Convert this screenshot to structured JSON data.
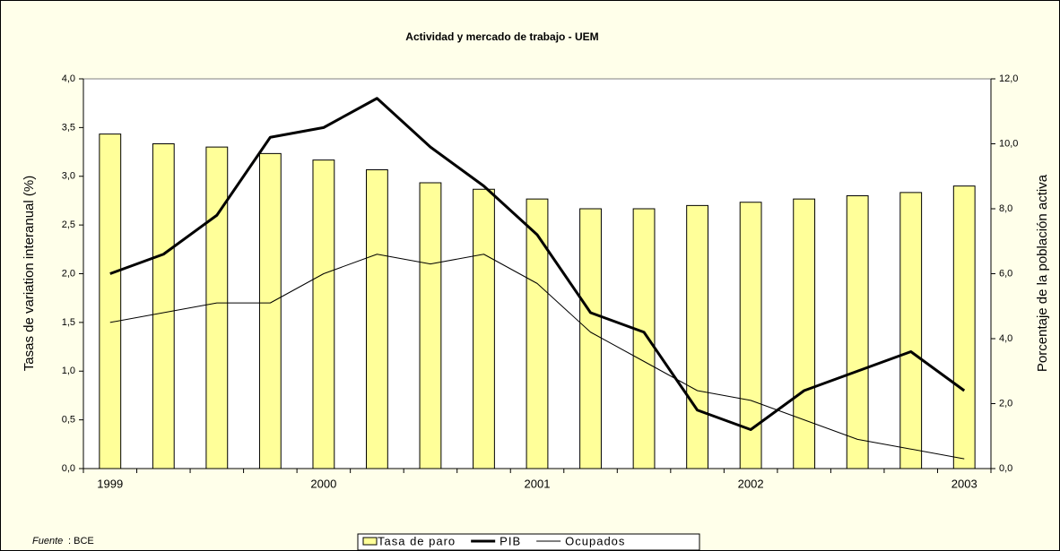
{
  "chart_data": {
    "type": "combo",
    "title": "Actividad y mercado de trabajo - UEM",
    "ylabel": "Tasas de variation interanual (%)",
    "y2label": "Porcentaje de la población activa",
    "source_label": "Fuente",
    "source": ": BCE",
    "categories": [
      "1999",
      null,
      null,
      null,
      "2000",
      null,
      null,
      null,
      "2001",
      null,
      null,
      null,
      "2002",
      null,
      null,
      null,
      "2003"
    ],
    "ylim": [
      0,
      4
    ],
    "yticks": [
      {
        "value": 0,
        "label": "0,0"
      },
      {
        "value": 0.5,
        "label": "0,5"
      },
      {
        "value": 1,
        "label": "1,0"
      },
      {
        "value": 1.5,
        "label": "1,5"
      },
      {
        "value": 2,
        "label": "2,0"
      },
      {
        "value": 2.5,
        "label": "2,5"
      },
      {
        "value": 3,
        "label": "3,0"
      },
      {
        "value": 3.5,
        "label": "3,5"
      },
      {
        "value": 4,
        "label": "4,0"
      }
    ],
    "y2lim": [
      0,
      12
    ],
    "y2ticks": [
      {
        "value": 0,
        "label": "0,0"
      },
      {
        "value": 2,
        "label": "2,0"
      },
      {
        "value": 4,
        "label": "4,0"
      },
      {
        "value": 6,
        "label": "6,0"
      },
      {
        "value": 8,
        "label": "8,0"
      },
      {
        "value": 10,
        "label": "10,0"
      },
      {
        "value": 12,
        "label": "12,0"
      }
    ],
    "series": [
      {
        "name": "Tasa de paro",
        "type": "bar",
        "axis": "y2",
        "color": "#ffff99",
        "values": [
          10.3,
          10.0,
          9.9,
          9.7,
          9.5,
          9.2,
          8.8,
          8.6,
          8.3,
          8.0,
          8.0,
          8.1,
          8.2,
          8.3,
          8.4,
          8.5,
          8.7
        ]
      },
      {
        "name": "PIB",
        "type": "line",
        "color": "#000000",
        "values": [
          2.0,
          2.2,
          2.6,
          3.4,
          3.5,
          3.8,
          3.3,
          2.9,
          2.4,
          1.6,
          1.4,
          0.6,
          0.4,
          0.8,
          1.0,
          1.2,
          0.8
        ]
      },
      {
        "name": "Ocupados",
        "type": "line",
        "color": "#000000",
        "values": [
          1.5,
          1.6,
          1.7,
          1.7,
          2.0,
          2.2,
          2.1,
          2.2,
          1.9,
          1.4,
          1.1,
          0.8,
          0.7,
          0.5,
          0.3,
          0.2,
          0.1
        ]
      }
    ]
  }
}
